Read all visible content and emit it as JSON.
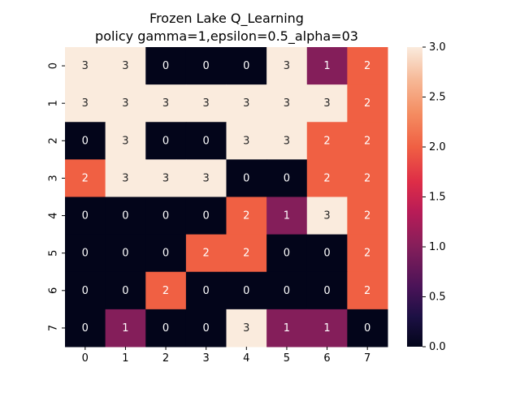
{
  "chart_data": {
    "type": "heatmap",
    "title_line1": "Frozen Lake Q_Learning",
    "title_line2": "policy gamma=1,epsilon=0.5_alpha=03",
    "x_categories": [
      "0",
      "1",
      "2",
      "3",
      "4",
      "5",
      "6",
      "7"
    ],
    "y_categories": [
      "0",
      "1",
      "2",
      "3",
      "4",
      "5",
      "6",
      "7"
    ],
    "values": [
      [
        3,
        3,
        0,
        0,
        0,
        3,
        1,
        2
      ],
      [
        3,
        3,
        3,
        3,
        3,
        3,
        3,
        2
      ],
      [
        0,
        3,
        0,
        0,
        3,
        3,
        2,
        2
      ],
      [
        2,
        3,
        3,
        3,
        0,
        0,
        2,
        2
      ],
      [
        0,
        0,
        0,
        0,
        2,
        1,
        3,
        2
      ],
      [
        0,
        0,
        0,
        2,
        2,
        0,
        0,
        2
      ],
      [
        0,
        0,
        2,
        0,
        0,
        0,
        0,
        2
      ],
      [
        0,
        1,
        0,
        0,
        3,
        1,
        1,
        0
      ]
    ],
    "vmin": 0,
    "vmax": 3,
    "colormap": "rocket",
    "colorbar_ticks": [
      "0.0",
      "0.5",
      "1.0",
      "1.5",
      "2.0",
      "2.5",
      "3.0"
    ],
    "colorbar_tick_values": [
      0,
      0.5,
      1,
      1.5,
      2,
      2.5,
      3
    ],
    "colors": {
      "value_0": "#03051a",
      "value_1": "#841e5a",
      "value_2": "#f06043",
      "value_3": "#faebdd",
      "annotation_on_dark": "#ffffff",
      "annotation_on_light": "#262626"
    }
  }
}
